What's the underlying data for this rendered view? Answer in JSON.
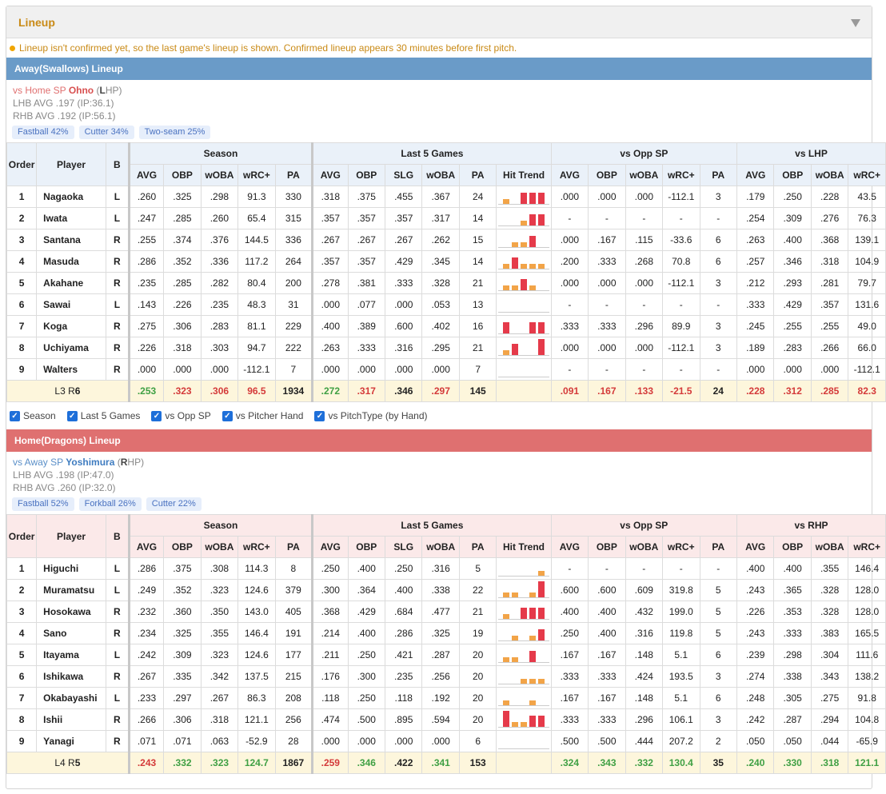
{
  "panel_title": "Lineup",
  "notice": "Lineup isn't confirmed yet, so the last game's lineup is shown. Confirmed lineup appears 30 minutes before first pitch.",
  "checkboxes": [
    "Season",
    "Last 5 Games",
    "vs Opp SP",
    "vs Pitcher Hand",
    "vs PitchType (by Hand)"
  ],
  "headers": {
    "order": "Order",
    "player": "Player",
    "b": "B",
    "groups": [
      "Season",
      "Last 5 Games",
      "vs Opp SP"
    ],
    "season_cols": [
      "AVG",
      "OBP",
      "wOBA",
      "wRC+",
      "PA"
    ],
    "last5_cols": [
      "AVG",
      "OBP",
      "SLG",
      "wOBA",
      "PA",
      "Hit Trend"
    ],
    "opp_cols": [
      "AVG",
      "OBP",
      "wOBA",
      "wRC+",
      "PA"
    ],
    "hand_cols": [
      "AVG",
      "OBP",
      "wOBA",
      "wRC+"
    ]
  },
  "colors": {
    "away": "#6a9bc8",
    "home": "#df7070",
    "orange_bar": "#f2a448",
    "red_bar": "#e53a4a"
  },
  "away": {
    "title": "Away(Swallows) Lineup",
    "sp_prefix": "vs Home SP ",
    "sp_name": "Ohno",
    "sp_hand": "L",
    "sp_hand_rest": "HP",
    "lhb": "LHB AVG .197 (IP:36.1)",
    "rhb": "RHB AVG .192 (IP:56.1)",
    "pitches": [
      "Fastball 42%",
      "Cutter 34%",
      "Two-seam 25%"
    ],
    "hand_group": "vs LHP",
    "rows": [
      {
        "o": "1",
        "n": "Nagaoka",
        "b": "L",
        "s": [
          ".260",
          ".325",
          ".298",
          "91.3",
          "330"
        ],
        "l": [
          ".318",
          ".375",
          ".455",
          ".367",
          "24"
        ],
        "t": [
          [
            0.3,
            "o"
          ],
          [
            0,
            "o"
          ],
          [
            0.7,
            "r"
          ],
          [
            0.7,
            "r"
          ],
          [
            0.7,
            "r"
          ]
        ],
        "v": [
          ".000",
          ".000",
          ".000",
          "-112.1",
          "3"
        ],
        "h": [
          ".179",
          ".250",
          ".228",
          "43.5"
        ]
      },
      {
        "o": "2",
        "n": "Iwata",
        "b": "L",
        "s": [
          ".247",
          ".285",
          ".260",
          "65.4",
          "315"
        ],
        "l": [
          ".357",
          ".357",
          ".357",
          ".317",
          "14"
        ],
        "t": [
          [
            0,
            "o"
          ],
          [
            0,
            "o"
          ],
          [
            0.3,
            "o"
          ],
          [
            0.7,
            "r"
          ],
          [
            0.7,
            "r"
          ]
        ],
        "v": [
          "-",
          "-",
          "-",
          "-",
          "-"
        ],
        "h": [
          ".254",
          ".309",
          ".276",
          "76.3"
        ]
      },
      {
        "o": "3",
        "n": "Santana",
        "b": "R",
        "s": [
          ".255",
          ".374",
          ".376",
          "144.5",
          "336"
        ],
        "l": [
          ".267",
          ".267",
          ".267",
          ".262",
          "15"
        ],
        "t": [
          [
            0,
            "o"
          ],
          [
            0.3,
            "o"
          ],
          [
            0.3,
            "o"
          ],
          [
            0.7,
            "r"
          ],
          [
            0,
            "o"
          ]
        ],
        "v": [
          ".000",
          ".167",
          ".115",
          "-33.6",
          "6"
        ],
        "h": [
          ".263",
          ".400",
          ".368",
          "139.1"
        ]
      },
      {
        "o": "4",
        "n": "Masuda",
        "b": "R",
        "s": [
          ".286",
          ".352",
          ".336",
          "117.2",
          "264"
        ],
        "l": [
          ".357",
          ".357",
          ".429",
          ".345",
          "14"
        ],
        "t": [
          [
            0.3,
            "o"
          ],
          [
            0.7,
            "r"
          ],
          [
            0.3,
            "o"
          ],
          [
            0.3,
            "o"
          ],
          [
            0.3,
            "o"
          ]
        ],
        "v": [
          ".200",
          ".333",
          ".268",
          "70.8",
          "6"
        ],
        "h": [
          ".257",
          ".346",
          ".318",
          "104.9"
        ]
      },
      {
        "o": "5",
        "n": "Akahane",
        "b": "R",
        "s": [
          ".235",
          ".285",
          ".282",
          "80.4",
          "200"
        ],
        "l": [
          ".278",
          ".381",
          ".333",
          ".328",
          "21"
        ],
        "t": [
          [
            0.3,
            "o"
          ],
          [
            0.3,
            "o"
          ],
          [
            0.7,
            "r"
          ],
          [
            0.3,
            "o"
          ],
          [
            0,
            "o"
          ]
        ],
        "v": [
          ".000",
          ".000",
          ".000",
          "-112.1",
          "3"
        ],
        "h": [
          ".212",
          ".293",
          ".281",
          "79.7"
        ]
      },
      {
        "o": "6",
        "n": "Sawai",
        "b": "L",
        "s": [
          ".143",
          ".226",
          ".235",
          "48.3",
          "31"
        ],
        "l": [
          ".000",
          ".077",
          ".000",
          ".053",
          "13"
        ],
        "t": [
          [
            0,
            "o"
          ],
          [
            0,
            "o"
          ],
          [
            0,
            "o"
          ],
          [
            0,
            "o"
          ],
          [
            0,
            "o"
          ]
        ],
        "v": [
          "-",
          "-",
          "-",
          "-",
          "-"
        ],
        "h": [
          ".333",
          ".429",
          ".357",
          "131.6"
        ]
      },
      {
        "o": "7",
        "n": "Koga",
        "b": "R",
        "s": [
          ".275",
          ".306",
          ".283",
          "81.1",
          "229"
        ],
        "l": [
          ".400",
          ".389",
          ".600",
          ".402",
          "16"
        ],
        "t": [
          [
            0.7,
            "r"
          ],
          [
            0,
            "o"
          ],
          [
            0,
            "o"
          ],
          [
            0.7,
            "r"
          ],
          [
            0.7,
            "r"
          ]
        ],
        "v": [
          ".333",
          ".333",
          ".296",
          "89.9",
          "3"
        ],
        "h": [
          ".245",
          ".255",
          ".255",
          "49.0"
        ]
      },
      {
        "o": "8",
        "n": "Uchiyama",
        "b": "R",
        "s": [
          ".226",
          ".318",
          ".303",
          "94.7",
          "222"
        ],
        "l": [
          ".263",
          ".333",
          ".316",
          ".295",
          "21"
        ],
        "t": [
          [
            0.3,
            "o"
          ],
          [
            0.7,
            "r"
          ],
          [
            0,
            "o"
          ],
          [
            0,
            "o"
          ],
          [
            1,
            "r"
          ]
        ],
        "v": [
          ".000",
          ".000",
          ".000",
          "-112.1",
          "3"
        ],
        "h": [
          ".189",
          ".283",
          ".266",
          "66.0"
        ]
      },
      {
        "o": "9",
        "n": "Walters",
        "b": "R",
        "s": [
          ".000",
          ".000",
          ".000",
          "-112.1",
          "7"
        ],
        "l": [
          ".000",
          ".000",
          ".000",
          ".000",
          "7"
        ],
        "t": [
          [
            0,
            "o"
          ],
          [
            0,
            "o"
          ],
          [
            0,
            "o"
          ],
          [
            0,
            "o"
          ],
          [
            0,
            "o"
          ]
        ],
        "v": [
          "-",
          "-",
          "-",
          "-",
          "-"
        ],
        "h": [
          ".000",
          ".000",
          ".000",
          "-112.1"
        ]
      }
    ],
    "total": {
      "label_l": "L3 R",
      "label_r": "6",
      "s": [
        [
          ".253",
          "green"
        ],
        [
          ".323",
          "red"
        ],
        [
          ".306",
          "red"
        ],
        [
          "96.5",
          "red"
        ],
        [
          "1934",
          "blk"
        ]
      ],
      "l": [
        [
          ".272",
          "green"
        ],
        [
          ".317",
          "red"
        ],
        [
          ".346",
          "blk"
        ],
        [
          ".297",
          "red"
        ],
        [
          "145",
          "blk"
        ]
      ],
      "v": [
        [
          ".091",
          "red"
        ],
        [
          ".167",
          "red"
        ],
        [
          ".133",
          "red"
        ],
        [
          "-21.5",
          "red"
        ],
        [
          "24",
          "blk"
        ]
      ],
      "h": [
        [
          ".228",
          "red"
        ],
        [
          ".312",
          "red"
        ],
        [
          ".285",
          "red"
        ],
        [
          "82.3",
          "red"
        ]
      ]
    }
  },
  "home": {
    "title": "Home(Dragons) Lineup",
    "sp_prefix": "vs Away SP ",
    "sp_name": "Yoshimura",
    "sp_hand": "R",
    "sp_hand_rest": "HP",
    "lhb": "LHB AVG .198 (IP:47.0)",
    "rhb": "RHB AVG .260 (IP:32.0)",
    "pitches": [
      "Fastball 52%",
      "Forkball 26%",
      "Cutter 22%"
    ],
    "hand_group": "vs RHP",
    "rows": [
      {
        "o": "1",
        "n": "Higuchi",
        "b": "L",
        "s": [
          ".286",
          ".375",
          ".308",
          "114.3",
          "8"
        ],
        "l": [
          ".250",
          ".400",
          ".250",
          ".316",
          "5"
        ],
        "t": [
          [
            0,
            "o"
          ],
          [
            0,
            "o"
          ],
          [
            0,
            "o"
          ],
          [
            0,
            "o"
          ],
          [
            0.3,
            "o"
          ]
        ],
        "v": [
          "-",
          "-",
          "-",
          "-",
          "-"
        ],
        "h": [
          ".400",
          ".400",
          ".355",
          "146.4"
        ]
      },
      {
        "o": "2",
        "n": "Muramatsu",
        "b": "L",
        "s": [
          ".249",
          ".352",
          ".323",
          "124.6",
          "379"
        ],
        "l": [
          ".300",
          ".364",
          ".400",
          ".338",
          "22"
        ],
        "t": [
          [
            0.3,
            "o"
          ],
          [
            0.3,
            "o"
          ],
          [
            0,
            "o"
          ],
          [
            0.3,
            "o"
          ],
          [
            1,
            "r"
          ]
        ],
        "v": [
          ".600",
          ".600",
          ".609",
          "319.8",
          "5"
        ],
        "h": [
          ".243",
          ".365",
          ".328",
          "128.0"
        ]
      },
      {
        "o": "3",
        "n": "Hosokawa",
        "b": "R",
        "s": [
          ".232",
          ".360",
          ".350",
          "143.0",
          "405"
        ],
        "l": [
          ".368",
          ".429",
          ".684",
          ".477",
          "21"
        ],
        "t": [
          [
            0.3,
            "o"
          ],
          [
            0,
            "o"
          ],
          [
            0.7,
            "r"
          ],
          [
            0.7,
            "r"
          ],
          [
            0.7,
            "r"
          ]
        ],
        "v": [
          ".400",
          ".400",
          ".432",
          "199.0",
          "5"
        ],
        "h": [
          ".226",
          ".353",
          ".328",
          "128.0"
        ]
      },
      {
        "o": "4",
        "n": "Sano",
        "b": "R",
        "s": [
          ".234",
          ".325",
          ".355",
          "146.4",
          "191"
        ],
        "l": [
          ".214",
          ".400",
          ".286",
          ".325",
          "19"
        ],
        "t": [
          [
            0,
            "o"
          ],
          [
            0.3,
            "o"
          ],
          [
            0,
            "o"
          ],
          [
            0.3,
            "o"
          ],
          [
            0.7,
            "r"
          ]
        ],
        "v": [
          ".250",
          ".400",
          ".316",
          "119.8",
          "5"
        ],
        "h": [
          ".243",
          ".333",
          ".383",
          "165.5"
        ]
      },
      {
        "o": "5",
        "n": "Itayama",
        "b": "L",
        "s": [
          ".242",
          ".309",
          ".323",
          "124.6",
          "177"
        ],
        "l": [
          ".211",
          ".250",
          ".421",
          ".287",
          "20"
        ],
        "t": [
          [
            0.3,
            "o"
          ],
          [
            0.3,
            "o"
          ],
          [
            0,
            "o"
          ],
          [
            0.7,
            "r"
          ],
          [
            0,
            "o"
          ]
        ],
        "v": [
          ".167",
          ".167",
          ".148",
          "5.1",
          "6"
        ],
        "h": [
          ".239",
          ".298",
          ".304",
          "111.6"
        ]
      },
      {
        "o": "6",
        "n": "Ishikawa",
        "b": "R",
        "s": [
          ".267",
          ".335",
          ".342",
          "137.5",
          "215"
        ],
        "l": [
          ".176",
          ".300",
          ".235",
          ".256",
          "20"
        ],
        "t": [
          [
            0,
            "o"
          ],
          [
            0,
            "o"
          ],
          [
            0.3,
            "o"
          ],
          [
            0.3,
            "o"
          ],
          [
            0.3,
            "o"
          ]
        ],
        "v": [
          ".333",
          ".333",
          ".424",
          "193.5",
          "3"
        ],
        "h": [
          ".274",
          ".338",
          ".343",
          "138.2"
        ]
      },
      {
        "o": "7",
        "n": "Okabayashi",
        "b": "L",
        "s": [
          ".233",
          ".297",
          ".267",
          "86.3",
          "208"
        ],
        "l": [
          ".118",
          ".250",
          ".118",
          ".192",
          "20"
        ],
        "t": [
          [
            0.3,
            "o"
          ],
          [
            0,
            "o"
          ],
          [
            0,
            "o"
          ],
          [
            0.3,
            "o"
          ],
          [
            0,
            "o"
          ]
        ],
        "v": [
          ".167",
          ".167",
          ".148",
          "5.1",
          "6"
        ],
        "h": [
          ".248",
          ".305",
          ".275",
          "91.8"
        ]
      },
      {
        "o": "8",
        "n": "Ishii",
        "b": "R",
        "s": [
          ".266",
          ".306",
          ".318",
          "121.1",
          "256"
        ],
        "l": [
          ".474",
          ".500",
          ".895",
          ".594",
          "20"
        ],
        "t": [
          [
            1,
            "r"
          ],
          [
            0.3,
            "o"
          ],
          [
            0.3,
            "o"
          ],
          [
            0.7,
            "r"
          ],
          [
            0.7,
            "r"
          ]
        ],
        "v": [
          ".333",
          ".333",
          ".296",
          "106.1",
          "3"
        ],
        "h": [
          ".242",
          ".287",
          ".294",
          "104.8"
        ]
      },
      {
        "o": "9",
        "n": "Yanagi",
        "b": "R",
        "s": [
          ".071",
          ".071",
          ".063",
          "-52.9",
          "28"
        ],
        "l": [
          ".000",
          ".000",
          ".000",
          ".000",
          "6"
        ],
        "t": [
          [
            0,
            "o"
          ],
          [
            0,
            "o"
          ],
          [
            0,
            "o"
          ],
          [
            0,
            "o"
          ],
          [
            0,
            "o"
          ]
        ],
        "v": [
          ".500",
          ".500",
          ".444",
          "207.2",
          "2"
        ],
        "h": [
          ".050",
          ".050",
          ".044",
          "-65.9"
        ]
      }
    ],
    "total": {
      "label_l": "L4 R",
      "label_r": "5",
      "s": [
        [
          ".243",
          "red"
        ],
        [
          ".332",
          "green"
        ],
        [
          ".323",
          "green"
        ],
        [
          "124.7",
          "green"
        ],
        [
          "1867",
          "blk"
        ]
      ],
      "l": [
        [
          ".259",
          "red"
        ],
        [
          ".346",
          "green"
        ],
        [
          ".422",
          "blk"
        ],
        [
          ".341",
          "green"
        ],
        [
          "153",
          "blk"
        ]
      ],
      "v": [
        [
          ".324",
          "green"
        ],
        [
          ".343",
          "green"
        ],
        [
          ".332",
          "green"
        ],
        [
          "130.4",
          "green"
        ],
        [
          "35",
          "blk"
        ]
      ],
      "h": [
        [
          ".240",
          "green"
        ],
        [
          ".330",
          "green"
        ],
        [
          ".318",
          "green"
        ],
        [
          "121.1",
          "green"
        ]
      ]
    }
  }
}
